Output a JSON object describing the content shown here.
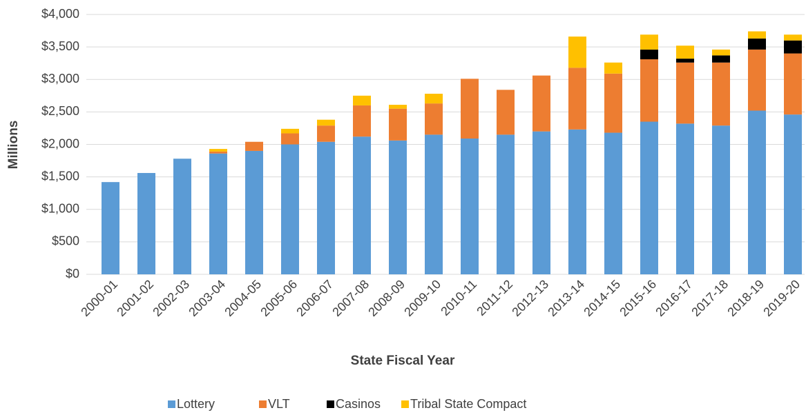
{
  "chart_data": {
    "type": "stacked_bar",
    "x_label": "State Fiscal Year",
    "y_label": "Millions",
    "categories": [
      "2000-01",
      "2001-02",
      "2002-03",
      "2003-04",
      "2004-05",
      "2005-06",
      "2006-07",
      "2007-08",
      "2008-09",
      "2009-10",
      "2010-11",
      "2011-12",
      "2012-13",
      "2013-14",
      "2014-15",
      "2015-16",
      "2016-17",
      "2017-18",
      "2018-19",
      "2019-20"
    ],
    "series": [
      {
        "name": "Lottery",
        "color": "#5b9bd5",
        "values": [
          1420,
          1560,
          1780,
          1860,
          1900,
          2000,
          2040,
          2120,
          2060,
          2150,
          2090,
          2150,
          2200,
          2230,
          2180,
          2350,
          2320,
          2290,
          2520,
          2460
        ]
      },
      {
        "name": "VLT",
        "color": "#ed7d31",
        "values": [
          0,
          0,
          0,
          30,
          140,
          170,
          250,
          480,
          490,
          480,
          920,
          690,
          860,
          950,
          910,
          960,
          940,
          970,
          940,
          940
        ]
      },
      {
        "name": "Casinos",
        "color": "#000000",
        "values": [
          0,
          0,
          0,
          0,
          0,
          0,
          0,
          0,
          0,
          0,
          0,
          0,
          0,
          0,
          0,
          150,
          60,
          110,
          170,
          200
        ]
      },
      {
        "name": "Tribal State Compact",
        "color": "#ffc000",
        "values": [
          0,
          0,
          0,
          40,
          0,
          70,
          90,
          150,
          60,
          150,
          0,
          0,
          0,
          480,
          170,
          230,
          200,
          90,
          110,
          90
        ]
      }
    ],
    "ylim": [
      0,
      4000
    ],
    "yticks": [
      {
        "value": 0,
        "label": "$0"
      },
      {
        "value": 500,
        "label": "$500"
      },
      {
        "value": 1000,
        "label": "$1,000"
      },
      {
        "value": 1500,
        "label": "$1,500"
      },
      {
        "value": 2000,
        "label": "$2,000"
      },
      {
        "value": 2500,
        "label": "$2,500"
      },
      {
        "value": 3000,
        "label": "$3,000"
      },
      {
        "value": 3500,
        "label": "$3,500"
      },
      {
        "value": 4000,
        "label": "$4,000"
      }
    ],
    "grid": true,
    "legend": "bottom"
  }
}
